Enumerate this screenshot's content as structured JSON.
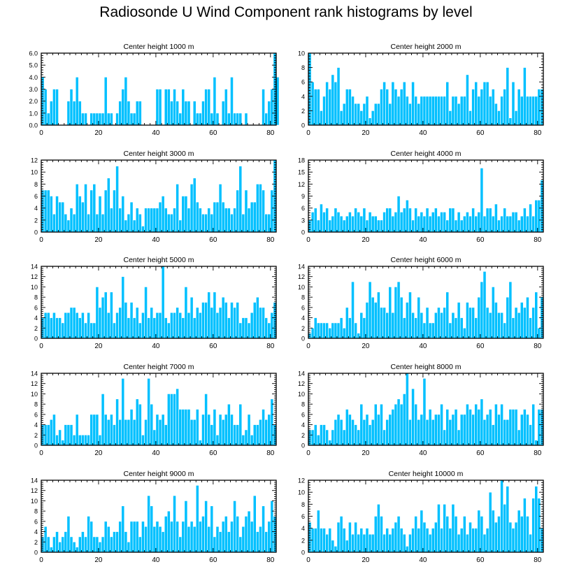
{
  "figure_title": "Radiosonde U Wind Component rank histograms by level",
  "bar_color": "#00c0ff",
  "bar_edge_color": "#ffffff",
  "chart_data": [
    {
      "type": "bar",
      "title": "Center height 1000 m",
      "xlim": [
        0,
        82
      ],
      "ylim": [
        0,
        6
      ],
      "xticks": [
        0,
        20,
        40,
        60,
        80
      ],
      "yticks": [
        0,
        1,
        2,
        3,
        4,
        5,
        6
      ],
      "ytick_labels": [
        "0.0",
        "1.0",
        "2.0",
        "3.0",
        "4.0",
        "5.0",
        "6.0"
      ],
      "values": [
        4,
        3,
        1,
        2,
        3,
        3,
        0,
        0,
        0,
        2,
        3,
        2,
        4,
        2,
        1,
        1,
        0,
        1,
        1,
        1,
        1,
        1,
        4,
        1,
        1,
        0,
        1,
        2,
        3,
        4,
        2,
        1,
        1,
        2,
        2,
        0,
        0,
        0,
        0,
        0,
        3,
        3,
        0,
        3,
        3,
        2,
        3,
        2,
        1,
        3,
        2,
        2,
        0,
        2,
        1,
        1,
        2,
        3,
        3,
        1,
        4,
        1,
        0,
        2,
        3,
        1,
        4,
        1,
        1,
        1,
        0,
        1,
        0,
        0,
        0,
        0,
        0,
        3,
        1,
        2,
        3,
        6,
        4
      ]
    },
    {
      "type": "bar",
      "title": "Center height 2000 m",
      "xlim": [
        0,
        82
      ],
      "ylim": [
        0,
        10
      ],
      "xticks": [
        0,
        20,
        40,
        60,
        80
      ],
      "yticks": [
        0,
        2,
        4,
        6,
        8,
        10
      ],
      "ytick_labels": [
        "0",
        "2",
        "4",
        "6",
        "8",
        "10"
      ],
      "values": [
        10,
        6,
        5,
        5,
        2,
        4,
        6,
        5,
        7,
        6,
        8,
        2,
        3,
        5,
        5,
        4,
        3,
        3,
        2,
        3,
        4,
        1,
        2,
        3,
        3,
        5,
        6,
        5,
        3,
        6,
        5,
        4,
        5,
        6,
        4,
        3,
        6,
        4,
        3,
        4,
        4,
        4,
        4,
        4,
        4,
        4,
        4,
        4,
        6,
        2,
        4,
        4,
        3,
        4,
        4,
        7,
        2,
        5,
        6,
        4,
        5,
        6,
        6,
        4,
        5,
        3,
        2,
        4,
        5,
        8,
        1,
        6,
        2,
        5,
        4,
        8,
        4,
        4,
        4,
        4,
        5,
        5
      ]
    },
    {
      "type": "bar",
      "title": "Center height 3000 m",
      "xlim": [
        0,
        82
      ],
      "ylim": [
        0,
        12
      ],
      "xticks": [
        0,
        20,
        40,
        60,
        80
      ],
      "yticks": [
        0,
        2,
        4,
        6,
        8,
        10,
        12
      ],
      "ytick_labels": [
        "0",
        "2",
        "4",
        "6",
        "8",
        "10",
        "12"
      ],
      "values": [
        7,
        7,
        7,
        6,
        3,
        6,
        5,
        5,
        3,
        2,
        4,
        3,
        8,
        6,
        5,
        8,
        3,
        7,
        8,
        3,
        6,
        3,
        7,
        9,
        4,
        7,
        11,
        4,
        6,
        2,
        3,
        5,
        2,
        4,
        3,
        1,
        4,
        4,
        4,
        4,
        4,
        5,
        6,
        4,
        3,
        3,
        4,
        8,
        2,
        6,
        6,
        4,
        8,
        9,
        5,
        4,
        3,
        3,
        4,
        3,
        5,
        5,
        8,
        5,
        4,
        4,
        3,
        4,
        7,
        11,
        3,
        7,
        4,
        5,
        5,
        8,
        8,
        7,
        3,
        3,
        7,
        12
      ]
    },
    {
      "type": "bar",
      "title": "Center height 4000 m",
      "xlim": [
        0,
        82
      ],
      "ylim": [
        0,
        18
      ],
      "xticks": [
        0,
        20,
        40,
        60,
        80
      ],
      "yticks": [
        0,
        3,
        6,
        9,
        12,
        15,
        18
      ],
      "ytick_labels": [
        "0",
        "3",
        "6",
        "9",
        "12",
        "15",
        "18"
      ],
      "values": [
        3,
        5,
        6,
        3,
        7,
        5,
        6,
        3,
        4,
        6,
        5,
        4,
        3,
        4,
        5,
        4,
        6,
        5,
        4,
        6,
        3,
        5,
        4,
        4,
        3,
        3,
        5,
        6,
        6,
        4,
        5,
        9,
        5,
        6,
        8,
        6,
        3,
        6,
        4,
        5,
        4,
        6,
        4,
        5,
        6,
        4,
        5,
        5,
        3,
        6,
        6,
        3,
        5,
        3,
        4,
        5,
        4,
        6,
        4,
        5,
        16,
        4,
        6,
        6,
        4,
        7,
        3,
        4,
        6,
        4,
        4,
        5,
        5,
        3,
        4,
        6,
        4,
        7,
        4,
        8,
        8,
        13
      ]
    },
    {
      "type": "bar",
      "title": "Center height 5000 m",
      "xlim": [
        0,
        82
      ],
      "ylim": [
        0,
        14
      ],
      "xticks": [
        0,
        20,
        40,
        60,
        80
      ],
      "yticks": [
        0,
        2,
        4,
        6,
        8,
        10,
        12,
        14
      ],
      "ytick_labels": [
        "0",
        "2",
        "4",
        "6",
        "8",
        "10",
        "12",
        "14"
      ],
      "values": [
        4,
        5,
        5,
        4,
        5,
        4,
        4,
        3,
        5,
        5,
        6,
        6,
        5,
        4,
        5,
        3,
        5,
        3,
        3,
        10,
        6,
        8,
        9,
        5,
        9,
        3,
        5,
        6,
        12,
        7,
        4,
        7,
        4,
        6,
        3,
        5,
        10,
        4,
        6,
        4,
        5,
        5,
        14,
        4,
        3,
        5,
        5,
        6,
        5,
        4,
        10,
        5,
        8,
        4,
        6,
        5,
        7,
        7,
        9,
        6,
        9,
        5,
        6,
        8,
        7,
        4,
        7,
        6,
        7,
        3,
        4,
        4,
        3,
        5,
        7,
        8,
        6,
        6,
        4,
        3,
        5,
        7
      ]
    },
    {
      "type": "bar",
      "title": "Center height 6000 m",
      "xlim": [
        0,
        82
      ],
      "ylim": [
        0,
        14
      ],
      "xticks": [
        0,
        20,
        40,
        60,
        80
      ],
      "yticks": [
        0,
        2,
        4,
        6,
        8,
        10,
        12,
        14
      ],
      "ytick_labels": [
        "0",
        "2",
        "4",
        "6",
        "8",
        "10",
        "12",
        "14"
      ],
      "values": [
        1,
        2,
        4,
        3,
        3,
        3,
        3,
        2,
        3,
        3,
        3,
        4,
        2,
        6,
        4,
        11,
        3,
        1,
        5,
        4,
        7,
        11,
        8,
        7,
        9,
        6,
        6,
        5,
        10,
        5,
        10,
        11,
        8,
        4,
        7,
        9,
        5,
        4,
        8,
        5,
        3,
        6,
        3,
        3,
        5,
        6,
        5,
        6,
        9,
        3,
        5,
        4,
        7,
        4,
        2,
        7,
        6,
        6,
        4,
        8,
        11,
        13,
        6,
        5,
        10,
        7,
        5,
        5,
        3,
        8,
        11,
        4,
        6,
        5,
        7,
        6,
        8,
        4,
        6,
        9,
        2,
        8
      ]
    },
    {
      "type": "bar",
      "title": "Center height 7000 m",
      "xlim": [
        0,
        82
      ],
      "ylim": [
        0,
        14
      ],
      "xticks": [
        0,
        20,
        40,
        60,
        80
      ],
      "yticks": [
        0,
        2,
        4,
        6,
        8,
        10,
        12,
        14
      ],
      "ytick_labels": [
        "0",
        "2",
        "4",
        "6",
        "8",
        "10",
        "12",
        "14"
      ],
      "values": [
        4,
        4,
        4,
        5,
        6,
        2,
        3,
        1,
        4,
        4,
        4,
        2,
        6,
        2,
        2,
        2,
        2,
        6,
        6,
        6,
        2,
        10,
        6,
        5,
        6,
        4,
        9,
        5,
        13,
        5,
        5,
        7,
        5,
        9,
        8,
        2,
        5,
        13,
        8,
        3,
        6,
        5,
        6,
        4,
        10,
        10,
        10,
        11,
        7,
        7,
        7,
        7,
        5,
        5,
        7,
        1,
        6,
        10,
        6,
        4,
        7,
        2,
        6,
        5,
        6,
        8,
        6,
        4,
        4,
        8,
        2,
        3,
        6,
        2,
        4,
        4,
        5,
        7,
        5,
        6,
        9,
        4
      ]
    },
    {
      "type": "bar",
      "title": "Center height 8000 m",
      "xlim": [
        0,
        82
      ],
      "ylim": [
        0,
        14
      ],
      "xticks": [
        0,
        20,
        40,
        60,
        80
      ],
      "yticks": [
        0,
        2,
        4,
        6,
        8,
        10,
        12,
        14
      ],
      "ytick_labels": [
        "0",
        "2",
        "4",
        "6",
        "8",
        "10",
        "12",
        "14"
      ],
      "values": [
        3,
        3,
        4,
        2,
        4,
        4,
        3,
        1,
        3,
        5,
        6,
        5,
        3,
        7,
        6,
        5,
        4,
        3,
        8,
        5,
        6,
        4,
        5,
        8,
        6,
        8,
        3,
        5,
        6,
        7,
        8,
        9,
        8,
        10,
        14,
        5,
        11,
        8,
        5,
        6,
        13,
        5,
        7,
        5,
        6,
        6,
        8,
        3,
        7,
        5,
        6,
        7,
        3,
        6,
        6,
        8,
        7,
        6,
        8,
        7,
        9,
        5,
        6,
        7,
        4,
        8,
        6,
        8,
        5,
        5,
        7,
        7,
        7,
        3,
        6,
        7,
        6,
        4,
        8,
        1,
        7,
        7
      ]
    },
    {
      "type": "bar",
      "title": "Center height 9000 m",
      "xlim": [
        0,
        82
      ],
      "ylim": [
        0,
        14
      ],
      "xticks": [
        0,
        20,
        40,
        60,
        80
      ],
      "yticks": [
        0,
        2,
        4,
        6,
        8,
        10,
        12,
        14
      ],
      "ytick_labels": [
        "0",
        "2",
        "4",
        "6",
        "8",
        "10",
        "12",
        "14"
      ],
      "values": [
        3,
        5,
        3,
        1,
        3,
        4,
        2,
        3,
        4,
        7,
        3,
        2,
        1,
        3,
        4,
        3,
        7,
        6,
        3,
        3,
        2,
        3,
        6,
        5,
        3,
        4,
        4,
        6,
        9,
        4,
        2,
        6,
        6,
        6,
        3,
        6,
        5,
        11,
        9,
        5,
        6,
        5,
        4,
        7,
        8,
        6,
        11,
        6,
        3,
        6,
        10,
        5,
        6,
        5,
        13,
        6,
        7,
        10,
        5,
        9,
        3,
        5,
        4,
        6,
        7,
        4,
        6,
        10,
        7,
        3,
        5,
        7,
        8,
        6,
        11,
        4,
        5,
        9,
        4,
        6,
        10,
        7
      ]
    },
    {
      "type": "bar",
      "title": "Center height 10000 m",
      "xlim": [
        0,
        82
      ],
      "ylim": [
        0,
        12
      ],
      "xticks": [
        0,
        20,
        40,
        60,
        80
      ],
      "yticks": [
        0,
        2,
        4,
        6,
        8,
        10,
        12
      ],
      "ytick_labels": [
        "0",
        "2",
        "4",
        "6",
        "8",
        "10",
        "12"
      ],
      "values": [
        5,
        4,
        4,
        7,
        4,
        4,
        3,
        4,
        2,
        1,
        5,
        6,
        4,
        2,
        5,
        3,
        5,
        3,
        4,
        3,
        4,
        3,
        3,
        6,
        8,
        6,
        3,
        4,
        3,
        4,
        5,
        6,
        4,
        3,
        1,
        3,
        4,
        6,
        4,
        7,
        5,
        4,
        3,
        4,
        5,
        8,
        4,
        8,
        6,
        4,
        8,
        6,
        3,
        4,
        6,
        3,
        5,
        4,
        4,
        7,
        6,
        3,
        4,
        10,
        7,
        5,
        6,
        12,
        8,
        11,
        5,
        4,
        5,
        7,
        6,
        9,
        6,
        3,
        9,
        11,
        9,
        4
      ]
    }
  ]
}
